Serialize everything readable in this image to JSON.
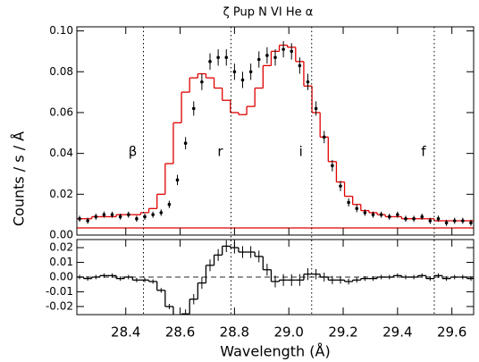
{
  "chart_data": [
    {
      "type": "errorbar",
      "title": "ζ Pup N VI He α",
      "y_label": "Counts / s / Å",
      "xlim": [
        28.22,
        29.68
      ],
      "xticks": [
        28.4,
        28.6,
        28.8,
        {
          "value": 29.0,
          "label": "29.0"
        },
        29.2,
        29.4,
        29.6
      ],
      "ylim": [
        0,
        0.102
      ],
      "yticks": [
        {
          "value": 0,
          "label": "0.00"
        },
        0.02,
        0.04,
        0.06,
        0.08,
        {
          "value": 0.1,
          "label": "0.10"
        }
      ],
      "x": [
        28.23,
        28.26,
        28.29,
        28.32,
        28.35,
        28.38,
        28.41,
        28.44,
        28.47,
        28.5,
        28.53,
        28.56,
        28.59,
        28.62,
        28.65,
        28.68,
        28.71,
        28.74,
        28.77,
        28.8,
        28.83,
        28.86,
        28.89,
        28.92,
        28.95,
        28.98,
        29.01,
        29.04,
        29.07,
        29.1,
        29.13,
        29.16,
        29.19,
        29.22,
        29.25,
        29.28,
        29.31,
        29.34,
        29.37,
        29.4,
        29.43,
        29.46,
        29.49,
        29.52,
        29.55,
        29.58,
        29.61,
        29.64,
        29.67
      ],
      "color": "#000000",
      "values": [
        0.008,
        0.007,
        0.009,
        0.01,
        0.01,
        0.009,
        0.01,
        0.008,
        0.009,
        0.01,
        0.011,
        0.015,
        0.027,
        0.045,
        0.062,
        0.075,
        0.085,
        0.087,
        0.087,
        0.08,
        0.076,
        0.08,
        0.086,
        0.088,
        0.087,
        0.091,
        0.09,
        0.083,
        0.075,
        0.062,
        0.048,
        0.034,
        0.024,
        0.016,
        0.013,
        0.011,
        0.01,
        0.01,
        0.009,
        0.01,
        0.008,
        0.008,
        0.009,
        0.007,
        0.008,
        0.006,
        0.007,
        0.007,
        0.006
      ],
      "errors": [
        0.0015,
        0.0015,
        0.0015,
        0.0015,
        0.0015,
        0.0015,
        0.0015,
        0.0015,
        0.0015,
        0.0015,
        0.0016,
        0.0018,
        0.0025,
        0.003,
        0.0035,
        0.004,
        0.004,
        0.004,
        0.004,
        0.004,
        0.004,
        0.004,
        0.004,
        0.004,
        0.004,
        0.004,
        0.004,
        0.004,
        0.004,
        0.0035,
        0.003,
        0.0028,
        0.0025,
        0.002,
        0.0018,
        0.0016,
        0.0015,
        0.0015,
        0.0015,
        0.0015,
        0.0015,
        0.0015,
        0.0015,
        0.0015,
        0.0015,
        0.0015,
        0.0015,
        0.0015,
        0.0015
      ],
      "model_color": "#e00000",
      "model_values": [
        0.008,
        0.008,
        0.009,
        0.009,
        0.009,
        0.01,
        0.01,
        0.01,
        0.011,
        0.013,
        0.02,
        0.035,
        0.055,
        0.07,
        0.077,
        0.079,
        0.077,
        0.072,
        0.066,
        0.06,
        0.059,
        0.063,
        0.072,
        0.083,
        0.09,
        0.093,
        0.092,
        0.085,
        0.073,
        0.06,
        0.048,
        0.036,
        0.026,
        0.019,
        0.015,
        0.012,
        0.011,
        0.01,
        0.009,
        0.009,
        0.008,
        0.008,
        0.008,
        0.008,
        0.007,
        0.007,
        0.007,
        0.007,
        0.007
      ],
      "hlines": [
        {
          "y": 0.0035,
          "color": "#e00000"
        }
      ],
      "vlines": [
        {
          "x": 28.465,
          "label": "β"
        },
        {
          "x": 28.787,
          "label": "r"
        },
        {
          "x": 29.084,
          "label": "i"
        },
        {
          "x": 29.535,
          "label": "f"
        }
      ]
    },
    {
      "type": "step",
      "x_label": "Wavelength (Å)",
      "xlim": [
        28.22,
        29.68
      ],
      "xticks": [
        28.4,
        28.6,
        28.8,
        {
          "value": 29.0,
          "label": "29.0"
        },
        29.2,
        29.4,
        29.6
      ],
      "ylim": [
        -0.0255,
        0.0255
      ],
      "yticks": [
        0.02,
        0.01,
        {
          "value": 0,
          "label": "0.00"
        },
        -0.01,
        -0.02
      ],
      "x": [
        28.23,
        28.26,
        28.29,
        28.32,
        28.35,
        28.38,
        28.41,
        28.44,
        28.47,
        28.5,
        28.53,
        28.56,
        28.59,
        28.62,
        28.65,
        28.68,
        28.71,
        28.74,
        28.77,
        28.8,
        28.83,
        28.86,
        28.89,
        28.92,
        28.95,
        28.98,
        29.01,
        29.04,
        29.07,
        29.1,
        29.13,
        29.16,
        29.19,
        29.22,
        29.25,
        29.28,
        29.31,
        29.34,
        29.37,
        29.4,
        29.43,
        29.46,
        29.49,
        29.52,
        29.55,
        29.58,
        29.61,
        29.64,
        29.67
      ],
      "color": "#000000",
      "values": [
        0,
        -0.001,
        0,
        0.001,
        0.001,
        -0.001,
        0,
        -0.002,
        -0.002,
        -0.003,
        -0.009,
        -0.02,
        -0.028,
        -0.025,
        -0.015,
        -0.004,
        0.008,
        0.015,
        0.021,
        0.02,
        0.017,
        0.017,
        0.014,
        0.005,
        -0.003,
        -0.002,
        -0.002,
        -0.002,
        0.002,
        0.002,
        0,
        -0.002,
        -0.002,
        -0.003,
        -0.002,
        -0.001,
        -0.001,
        0,
        0,
        0.001,
        0,
        0,
        0.001,
        -0.001,
        0.001,
        -0.001,
        0,
        0,
        -0.001
      ],
      "errors": [
        0.0015,
        0.0015,
        0.0015,
        0.0015,
        0.0015,
        0.0015,
        0.0015,
        0.0015,
        0.0015,
        0.0015,
        0.0016,
        0.0018,
        0.0025,
        0.003,
        0.0035,
        0.004,
        0.004,
        0.004,
        0.004,
        0.004,
        0.004,
        0.004,
        0.004,
        0.004,
        0.004,
        0.004,
        0.004,
        0.004,
        0.004,
        0.0035,
        0.003,
        0.0028,
        0.0025,
        0.002,
        0.0018,
        0.0016,
        0.0015,
        0.0015,
        0.0015,
        0.0015,
        0.0015,
        0.0015,
        0.0015,
        0.0015,
        0.0015,
        0.0015,
        0.0015,
        0.0015,
        0.0015
      ],
      "hlines": [
        {
          "y": 0,
          "style": "dashed"
        }
      ]
    }
  ]
}
